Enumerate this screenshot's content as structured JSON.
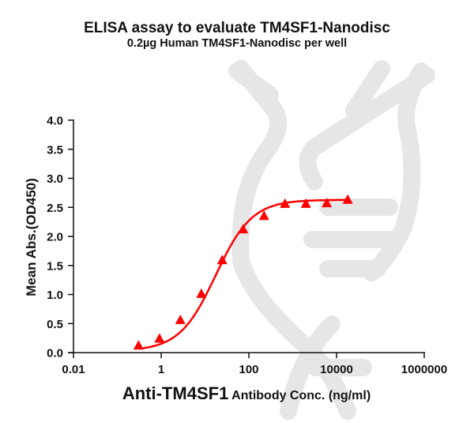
{
  "title": "ELISA assay to evaluate TM4SF1-Nanodisc",
  "subtitle": "0.2µg Human TM4SF1-Nanodisc per well",
  "colors": {
    "series": "#ff0000",
    "axis": "#111111",
    "watermark": "#e6e6e6"
  },
  "chart_data": {
    "type": "scatter",
    "title": "ELISA assay to evaluate TM4SF1-Nanodisc",
    "subtitle": "0.2µg Human TM4SF1-Nanodisc per well",
    "xlabel": "Anti-TM4SF1 Antibody Conc. (ng/ml)",
    "xlabel_bold_part": "Anti-TM4SF1",
    "xlabel_rest": " Antibody Conc. (ng/ml)",
    "ylabel": "Mean Abs.(OD450)",
    "xscale": "log",
    "xlim": [
      0.01,
      1000000
    ],
    "ylim": [
      0,
      4.0
    ],
    "xticks": [
      0.01,
      1,
      100,
      10000,
      1000000
    ],
    "xtick_labels": [
      "0.01",
      "1",
      "100",
      "10000",
      "1000000"
    ],
    "yticks": [
      0,
      0.5,
      1.0,
      1.5,
      2.0,
      2.5,
      3.0,
      3.5,
      4.0
    ],
    "ytick_labels": [
      "0.0",
      "0.5",
      "1.0",
      "1.5",
      "2.0",
      "2.5",
      "3.0",
      "3.5",
      "4.0"
    ],
    "grid": false,
    "legend": null,
    "series": [
      {
        "name": "TM4SF1-Nanodisc",
        "marker": "triangle",
        "color": "#ff0000",
        "x": [
          0.305,
          0.914,
          2.74,
          8.23,
          24.7,
          74.1,
          222,
          667,
          2000,
          6000,
          18000
        ],
        "y": [
          0.12,
          0.24,
          0.56,
          1.01,
          1.59,
          2.12,
          2.35,
          2.56,
          2.56,
          2.57,
          2.63
        ],
        "fit": {
          "model": "4PL",
          "bottom": 0.03,
          "top": 2.63,
          "ec50": 17.5,
          "hill": 1.05
        }
      }
    ]
  }
}
